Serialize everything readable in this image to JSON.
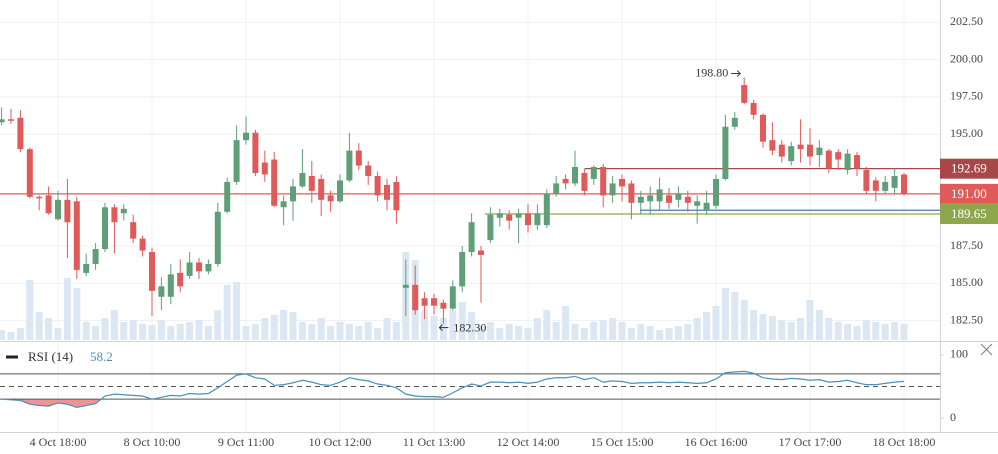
{
  "chart_data": [
    {
      "type": "candlestick",
      "categories": [
        null,
        null,
        null,
        null,
        null,
        null,
        "4 Oct 18:00",
        null,
        null,
        null,
        null,
        null,
        null,
        null,
        null,
        null,
        "8 Oct 10:00",
        null,
        null,
        null,
        null,
        null,
        null,
        null,
        null,
        null,
        "9 Oct 11:00",
        null,
        null,
        null,
        null,
        null,
        null,
        null,
        null,
        null,
        "10 Oct 12:00",
        null,
        null,
        null,
        null,
        null,
        null,
        null,
        null,
        null,
        "11 Oct 13:00",
        null,
        null,
        null,
        null,
        null,
        null,
        null,
        null,
        null,
        "12 Oct 14:00",
        null,
        null,
        null,
        null,
        null,
        null,
        null,
        null,
        null,
        "15 Oct 15:00",
        null,
        null,
        null,
        null,
        null,
        null,
        null,
        null,
        null,
        "16 Oct 16:00",
        null,
        null,
        null,
        null,
        null,
        null,
        null,
        null,
        null,
        "17 Oct 17:00",
        null,
        null,
        null,
        null,
        null,
        null,
        null,
        null,
        null,
        "18 Oct 18:00"
      ],
      "open": [
        195.8,
        196.0,
        196.1,
        194.0,
        190.8,
        190.9,
        189.3,
        190.6,
        190.5,
        185.7,
        186.3,
        187.3,
        190.1,
        189.7,
        189.1,
        188.0,
        187.1,
        184.1,
        184.1,
        185.7,
        185.5,
        186.4,
        185.8,
        186.3,
        189.8,
        191.8,
        194.6,
        195.1,
        193.1,
        193.3,
        190.1,
        190.5,
        191.5,
        192.2,
        192.0,
        190.9,
        190.5,
        191.9,
        193.9,
        192.9,
        192.2,
        191.6,
        191.8,
        184.7,
        184.9,
        184.0,
        184.0,
        183.7,
        183.3,
        184.8,
        187.1,
        187.2,
        187.9,
        189.4,
        189.6,
        189.4,
        189.7,
        188.9,
        188.9,
        191.0,
        192.0,
        191.7,
        192.4,
        192.0,
        192.8,
        190.9,
        192.0,
        191.7,
        190.4,
        190.5,
        190.5,
        190.9,
        190.6,
        190.8,
        190.2,
        189.9,
        190.2,
        192.0,
        195.5,
        198.3,
        197.1,
        196.3,
        194.6,
        194.3,
        193.2,
        194.3,
        194.3,
        193.6,
        193.9,
        193.8,
        192.6,
        193.6,
        192.6,
        191.9,
        191.2,
        191.4,
        192.3
      ],
      "high": [
        196.8,
        196.7,
        196.6,
        194.1,
        190.9,
        191.5,
        191.2,
        192.0,
        190.8,
        187.0,
        187.7,
        190.4,
        190.3,
        190.3,
        189.6,
        188.2,
        187.4,
        185.4,
        186.3,
        186.6,
        187.1,
        186.7,
        186.6,
        190.4,
        192.1,
        195.6,
        196.2,
        195.3,
        193.9,
        193.8,
        190.9,
        192.0,
        194.0,
        193.2,
        192.3,
        191.2,
        192.3,
        195.1,
        194.4,
        193.2,
        192.5,
        192.0,
        192.2,
        186.6,
        186.2,
        184.4,
        184.3,
        183.9,
        185.2,
        187.5,
        189.7,
        187.5,
        190.1,
        190.0,
        189.9,
        190.0,
        190.3,
        190.3,
        191.3,
        192.2,
        192.3,
        193.9,
        192.7,
        192.9,
        193.0,
        192.2,
        192.3,
        191.9,
        191.2,
        191.5,
        192.1,
        191.4,
        191.5,
        191.2,
        190.9,
        191.2,
        192.3,
        196.3,
        196.5,
        198.8,
        197.3,
        196.4,
        195.8,
        194.6,
        194.5,
        196.0,
        195.4,
        194.6,
        194.0,
        194.0,
        194.0,
        193.8,
        192.8,
        192.1,
        192.2,
        192.7,
        192.4
      ],
      "low": [
        195.6,
        195.7,
        193.8,
        190.7,
        189.9,
        189.6,
        189.2,
        186.7,
        185.3,
        185.5,
        185.9,
        187.1,
        187.0,
        189.2,
        187.7,
        186.8,
        182.8,
        183.2,
        183.6,
        184.4,
        185.3,
        185.3,
        185.6,
        186.1,
        189.7,
        191.6,
        194.3,
        192.2,
        191.8,
        190.1,
        188.9,
        189.2,
        191.4,
        190.4,
        189.5,
        189.8,
        190.4,
        191.8,
        192.6,
        191.6,
        190.5,
        189.9,
        189.0,
        182.8,
        182.9,
        182.6,
        182.9,
        182.3,
        183.2,
        184.4,
        186.8,
        183.7,
        187.7,
        188.8,
        188.6,
        187.7,
        188.4,
        188.6,
        188.7,
        190.8,
        191.3,
        191.5,
        190.9,
        191.6,
        190.1,
        190.4,
        190.5,
        189.3,
        189.6,
        189.6,
        189.9,
        190.0,
        190.1,
        189.8,
        189.0,
        189.6,
        190.0,
        191.9,
        195.3,
        197.0,
        196.0,
        194.1,
        193.6,
        193.1,
        192.9,
        193.1,
        192.9,
        192.8,
        192.4,
        192.6,
        192.3,
        192.2,
        191.0,
        190.5,
        191.0,
        191.0,
        190.9
      ],
      "close": [
        196.0,
        195.9,
        194.0,
        190.8,
        190.7,
        189.7,
        190.6,
        189.1,
        185.9,
        186.3,
        187.3,
        190.1,
        189.1,
        190.0,
        188.0,
        187.2,
        184.5,
        184.8,
        185.6,
        184.8,
        186.4,
        185.8,
        186.3,
        189.8,
        191.8,
        194.6,
        195.1,
        192.4,
        192.3,
        190.2,
        190.5,
        191.5,
        192.4,
        191.2,
        190.6,
        190.5,
        191.9,
        193.9,
        192.9,
        192.2,
        190.9,
        190.6,
        189.9,
        184.9,
        183.2,
        183.5,
        183.5,
        183.3,
        184.8,
        187.1,
        189.1,
        186.9,
        189.6,
        189.7,
        189.2,
        189.7,
        188.9,
        189.7,
        191.0,
        191.7,
        191.7,
        192.8,
        191.2,
        192.8,
        190.9,
        191.7,
        191.5,
        190.4,
        190.8,
        190.9,
        191.3,
        190.4,
        191.0,
        190.4,
        190.5,
        190.4,
        192.0,
        195.5,
        196.1,
        197.1,
        196.3,
        194.5,
        193.9,
        193.5,
        194.2,
        194.0,
        193.5,
        194.1,
        192.7,
        193.3,
        193.7,
        192.7,
        191.2,
        191.2,
        191.8,
        192.2,
        191.0
      ],
      "volume": [
        10,
        8,
        12,
        60,
        28,
        22,
        12,
        62,
        52,
        18,
        14,
        22,
        30,
        18,
        20,
        16,
        15,
        20,
        14,
        16,
        18,
        20,
        14,
        30,
        55,
        58,
        14,
        16,
        22,
        25,
        30,
        28,
        18,
        16,
        22,
        14,
        18,
        16,
        14,
        18,
        12,
        22,
        18,
        88,
        80,
        30,
        24,
        22,
        30,
        38,
        28,
        14,
        18,
        12,
        16,
        14,
        12,
        22,
        30,
        18,
        34,
        16,
        12,
        18,
        20,
        22,
        18,
        12,
        16,
        14,
        10,
        12,
        14,
        16,
        22,
        28,
        34,
        52,
        48,
        40,
        30,
        26,
        24,
        20,
        18,
        22,
        40,
        30,
        22,
        18,
        16,
        14,
        20,
        18,
        16,
        18,
        16
      ],
      "up_color": "#5f9f78",
      "down_color": "#e05a5a",
      "volume_color": "#dbe7f2",
      "ylim": [
        181.2,
        204
      ],
      "yticks": [
        {
          "value": 182.5,
          "label": "182.50"
        },
        {
          "value": 185,
          "label": "185.00"
        },
        {
          "value": 187.5,
          "label": "187.50"
        },
        {
          "value": 195,
          "label": "195.00"
        },
        {
          "value": 197.5,
          "label": "197.50"
        },
        {
          "value": 200,
          "label": "200.00"
        },
        {
          "value": 202.5,
          "label": "202.50"
        }
      ],
      "price_lines": [
        {
          "value": 192.69,
          "label": "192.69",
          "color": "#a8474a"
        },
        {
          "value": 191,
          "label": "191.00",
          "color": "#e05a5a"
        },
        {
          "value": 189.65,
          "label": "189.65",
          "color": "#8ea64c"
        },
        {
          "value": 189.9,
          "color": "#4a78b0"
        }
      ],
      "high_label": "198.80",
      "low_label": "182.30",
      "grid": true
    },
    {
      "type": "line",
      "name": "RSI (14)",
      "color": "#4a90b8",
      "fill_color": "#f08080",
      "values": [
        30,
        29,
        28,
        22,
        20,
        19,
        24,
        22,
        17,
        20,
        23,
        35,
        38,
        37,
        36,
        35,
        30,
        33,
        36,
        35,
        39,
        38,
        39,
        48,
        58,
        68,
        70,
        64,
        62,
        52,
        53,
        56,
        60,
        57,
        53,
        52,
        57,
        64,
        61,
        59,
        54,
        52,
        48,
        38,
        35,
        34,
        34,
        33,
        40,
        48,
        54,
        51,
        57,
        57,
        56,
        57,
        55,
        57,
        62,
        64,
        64,
        66,
        61,
        64,
        57,
        59,
        58,
        55,
        56,
        56,
        57,
        56,
        57,
        56,
        55,
        56,
        62,
        72,
        73,
        74,
        71,
        64,
        62,
        61,
        63,
        62,
        60,
        61,
        57,
        58,
        60,
        56,
        53,
        53,
        55,
        57,
        58.2
      ],
      "ylim": [
        -22,
        119
      ],
      "yticks": [
        0,
        100
      ],
      "levels": [
        30,
        50,
        70
      ]
    }
  ]
}
